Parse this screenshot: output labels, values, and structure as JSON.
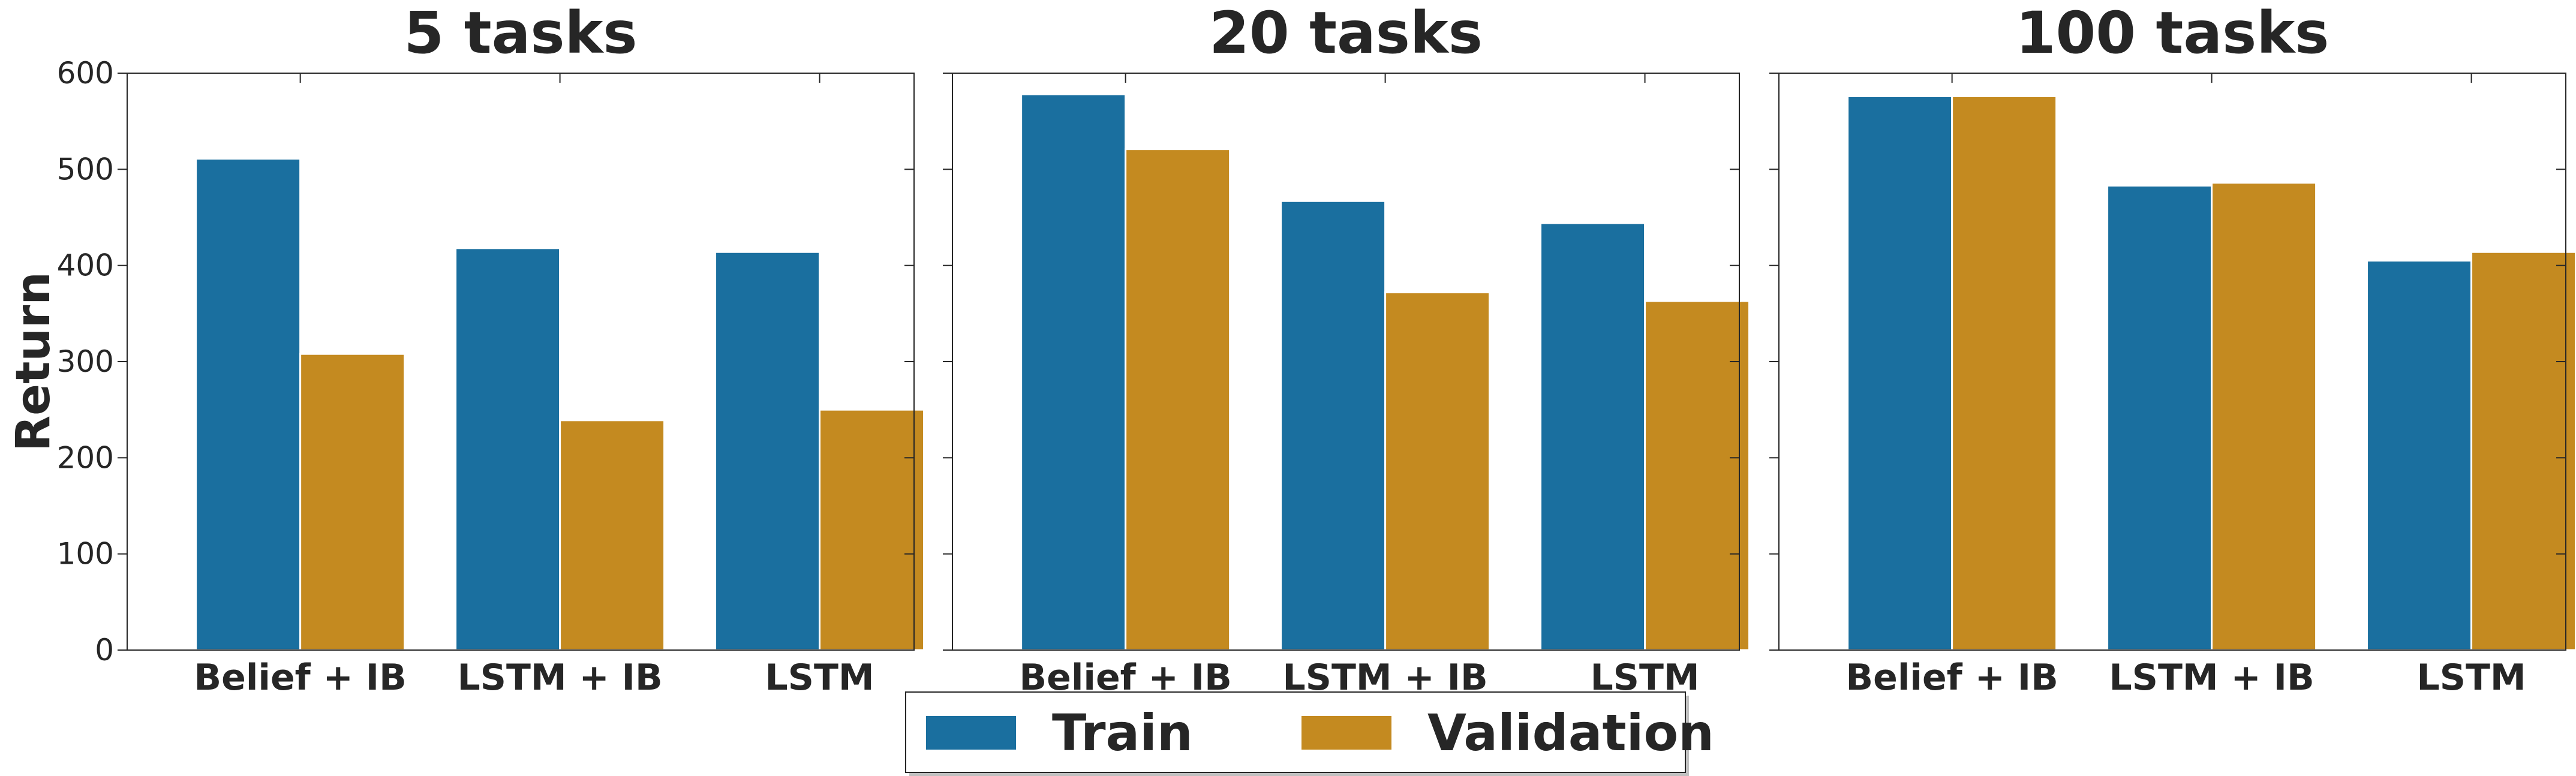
{
  "chart_data": {
    "type": "bar",
    "ylabel": "Return",
    "ylim": [
      0,
      600
    ],
    "yticks": [
      "0",
      "100",
      "200",
      "300",
      "400",
      "500",
      "600"
    ],
    "categories": [
      "Belief + IB",
      "LSTM + IB",
      "LSTM"
    ],
    "colors": {
      "Train": "#1a6f9f",
      "Validation": "#c48a20"
    },
    "legend": {
      "position": "bottom-center",
      "entries": [
        "Train",
        "Validation"
      ]
    },
    "grid": false,
    "panels": [
      {
        "title": "5 tasks",
        "series": [
          {
            "name": "Train",
            "values": [
              511,
              418,
              414
            ]
          },
          {
            "name": "Validation",
            "values": [
              308,
              239,
              250
            ]
          }
        ]
      },
      {
        "title": "20 tasks",
        "series": [
          {
            "name": "Train",
            "values": [
              578,
              467,
              444
            ]
          },
          {
            "name": "Validation",
            "values": [
              521,
              372,
              363
            ]
          }
        ]
      },
      {
        "title": "100 tasks",
        "series": [
          {
            "name": "Train",
            "values": [
              576,
              483,
              405
            ]
          },
          {
            "name": "Validation",
            "values": [
              576,
              486,
              414
            ]
          }
        ]
      }
    ]
  }
}
